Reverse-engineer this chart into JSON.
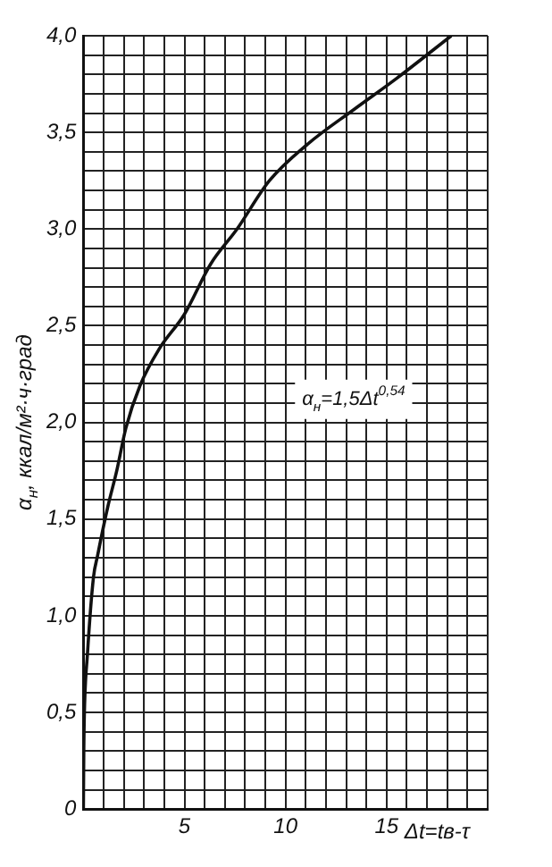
{
  "chart_data": {
    "type": "line",
    "xlabel": "Δt=tв-τ",
    "ylabel": "α$_{н}$, ккал/м²·ч·град",
    "annotations": [
      "α$_{н}$=1,5Δt$^{0,54}$"
    ],
    "x": [
      0,
      0.02,
      0.05,
      0.2,
      0.5,
      0.7,
      1.2,
      1.65,
      2.1,
      2.8,
      3.75,
      5,
      6.3,
      7.6,
      9.2,
      11.1,
      13.4,
      15.5,
      18.2
    ],
    "series": [
      {
        "color": "#111111",
        "values": [
          0,
          0.3,
          0.5,
          0.8,
          1.2,
          1.31,
          1.56,
          1.75,
          1.97,
          2.19,
          2.38,
          2.56,
          2.82,
          3.0,
          3.25,
          3.44,
          3.62,
          3.78,
          4.0
        ]
      }
    ],
    "xlim": [
      0,
      20
    ],
    "ylim": [
      0,
      4
    ],
    "xticks": [
      {
        "value": 0,
        "label": null
      },
      {
        "value": 1,
        "label": null
      },
      {
        "value": 2,
        "label": null
      },
      {
        "value": 3,
        "label": null
      },
      {
        "value": 4,
        "label": null
      },
      5,
      {
        "value": 6,
        "label": null
      },
      {
        "value": 7,
        "label": null
      },
      {
        "value": 8,
        "label": null
      },
      {
        "value": 9,
        "label": null
      },
      10,
      {
        "value": 11,
        "label": null
      },
      {
        "value": 12,
        "label": null
      },
      {
        "value": 13,
        "label": null
      },
      {
        "value": 14,
        "label": null
      },
      15,
      {
        "value": 16,
        "label": null
      },
      {
        "value": 17,
        "label": null
      },
      {
        "value": 18,
        "label": null
      },
      {
        "value": 19,
        "label": null
      },
      {
        "value": 20,
        "label": null
      }
    ],
    "yticks": [
      {
        "value": 0,
        "label": "0"
      },
      {
        "value": 0.1,
        "label": null
      },
      {
        "value": 0.2,
        "label": null
      },
      {
        "value": 0.3,
        "label": null
      },
      {
        "value": 0.4,
        "label": null
      },
      {
        "value": 0.5,
        "label": "0,5"
      },
      {
        "value": 0.6,
        "label": null
      },
      {
        "value": 0.7,
        "label": null
      },
      {
        "value": 0.8,
        "label": null
      },
      {
        "value": 0.9,
        "label": null
      },
      {
        "value": 1,
        "label": "1,0"
      },
      {
        "value": 1.1,
        "label": null
      },
      {
        "value": 1.2,
        "label": null
      },
      {
        "value": 1.3,
        "label": null
      },
      {
        "value": 1.4,
        "label": null
      },
      {
        "value": 1.5,
        "label": "1,5"
      },
      {
        "value": 1.6,
        "label": null
      },
      {
        "value": 1.7,
        "label": null
      },
      {
        "value": 1.8,
        "label": null
      },
      {
        "value": 1.9,
        "label": null
      },
      {
        "value": 2,
        "label": "2,0"
      },
      {
        "value": 2.1,
        "label": null
      },
      {
        "value": 2.2,
        "label": null
      },
      {
        "value": 2.3,
        "label": null
      },
      {
        "value": 2.4,
        "label": null
      },
      {
        "value": 2.5,
        "label": "2,5"
      },
      {
        "value": 2.6,
        "label": null
      },
      {
        "value": 2.7,
        "label": null
      },
      {
        "value": 2.8,
        "label": null
      },
      {
        "value": 2.9,
        "label": null
      },
      {
        "value": 3,
        "label": "3,0"
      },
      {
        "value": 3.1,
        "label": null
      },
      {
        "value": 3.2,
        "label": null
      },
      {
        "value": 3.3,
        "label": null
      },
      {
        "value": 3.4,
        "label": null
      },
      {
        "value": 3.5,
        "label": "3,5"
      },
      {
        "value": 3.6,
        "label": null
      },
      {
        "value": 3.7,
        "label": null
      },
      {
        "value": 3.8,
        "label": null
      },
      {
        "value": 3.9,
        "label": null
      },
      {
        "value": 4,
        "label": "4,0"
      }
    ],
    "grid": true,
    "legend": false,
    "marker": "none",
    "line_style": "solid"
  }
}
